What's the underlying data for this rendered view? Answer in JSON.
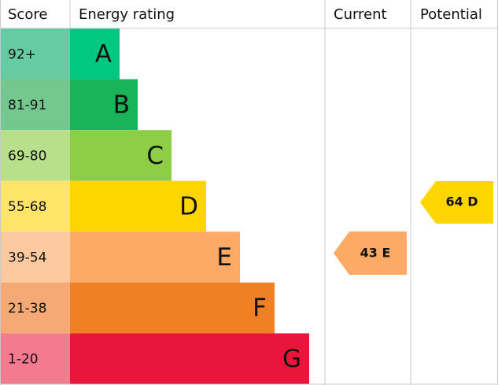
{
  "headers": [
    "Score",
    "Energy rating",
    "Current",
    "Potential"
  ],
  "bands": [
    {
      "score": "92+",
      "letter": "A"
    },
    {
      "score": "81-91",
      "letter": "B"
    },
    {
      "score": "69-80",
      "letter": "C"
    },
    {
      "score": "55-68",
      "letter": "D"
    },
    {
      "score": "39-54",
      "letter": "E"
    },
    {
      "score": "21-38",
      "letter": "F"
    },
    {
      "score": "1-20",
      "letter": "G"
    }
  ],
  "current": "43 E",
  "potential": "64 D"
}
